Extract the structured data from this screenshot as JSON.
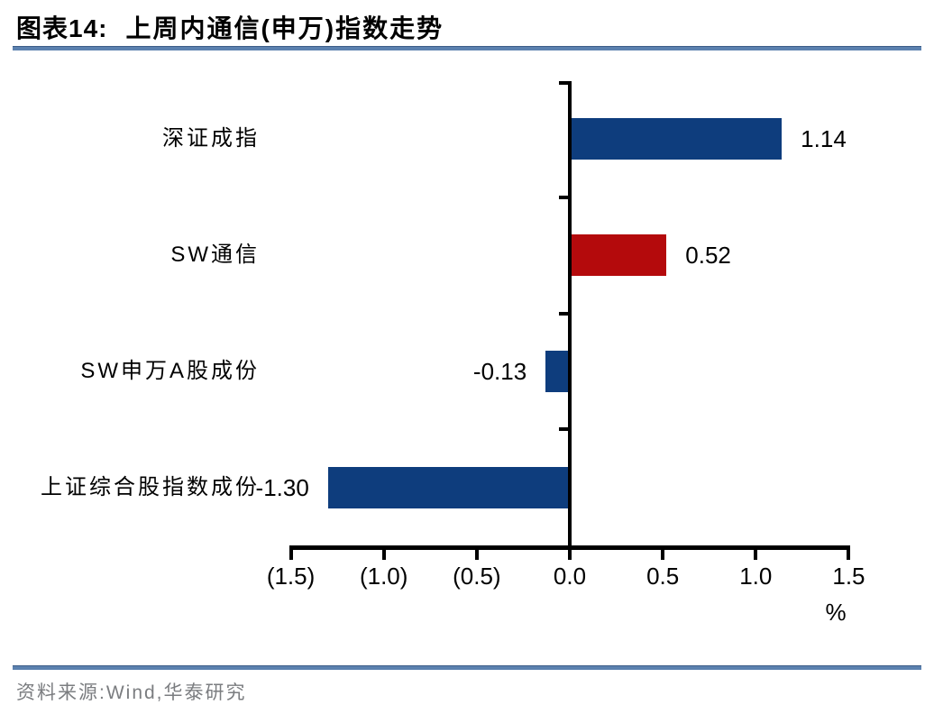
{
  "header": {
    "figure_label": "图表14:",
    "title": "上周内通信(申万)指数走势"
  },
  "chart_data": {
    "type": "bar",
    "orientation": "horizontal",
    "title": "上周内通信(申万)指数走势",
    "categories": [
      "深证成指",
      "SW通信",
      "SW申万A股成份",
      "上证综合股指数成份"
    ],
    "values": [
      1.14,
      0.52,
      -0.13,
      -1.3
    ],
    "value_labels": [
      "1.14",
      "0.52",
      "-0.13",
      "-1.30"
    ],
    "bar_colors": [
      "#0e3d7d",
      "#b40a0c",
      "#0e3d7d",
      "#0e3d7d"
    ],
    "xlim": [
      -1.5,
      1.5
    ],
    "xticks": [
      -1.5,
      -1.0,
      -0.5,
      0,
      0.5,
      1.0,
      1.5
    ],
    "xtick_labels": [
      "(1.5)",
      "(1.0)",
      "(0.5)",
      "0.0",
      "0.5",
      "1.0",
      "1.5"
    ],
    "unit_label": "%",
    "grid": "off",
    "legend": "none",
    "axis_color": "#000000",
    "value_label_position": "outside-end"
  },
  "footer": {
    "source": "资料来源:Wind,华泰研究"
  },
  "colors": {
    "divider_blue": "#5b81af",
    "bar_blue": "#0e3d7d",
    "bar_red": "#b40a0c",
    "source_gray": "#7b7d80"
  }
}
